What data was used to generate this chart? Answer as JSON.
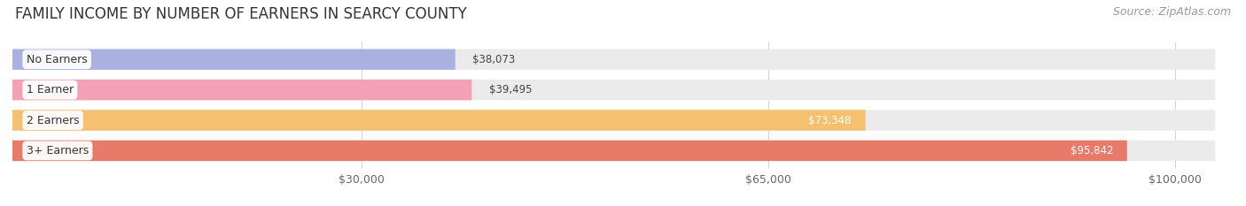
{
  "title": "FAMILY INCOME BY NUMBER OF EARNERS IN SEARCY COUNTY",
  "source": "Source: ZipAtlas.com",
  "categories": [
    "No Earners",
    "1 Earner",
    "2 Earners",
    "3+ Earners"
  ],
  "values": [
    38073,
    39495,
    73348,
    95842
  ],
  "bar_colors": [
    "#aab0e0",
    "#f4a0b5",
    "#f5c070",
    "#e87a6a"
  ],
  "x_ticks": [
    30000,
    65000,
    100000
  ],
  "x_tick_labels": [
    "$30,000",
    "$65,000",
    "$100,000"
  ],
  "xlim_max": 105000,
  "background_color": "#ffffff",
  "bar_bg_color": "#ebebeb",
  "title_fontsize": 12,
  "source_fontsize": 9,
  "bar_height": 0.68,
  "label_fontsize": 9,
  "value_fontsize": 8.5
}
